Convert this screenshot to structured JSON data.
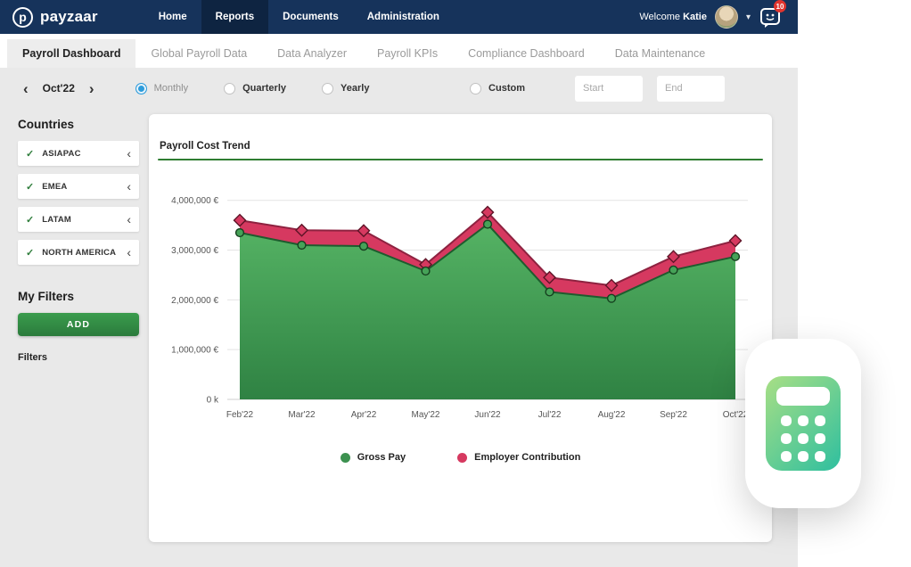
{
  "navbar": {
    "brand": "payzaar",
    "brand_icon_letter": "p",
    "items": [
      {
        "label": "Home",
        "active": false
      },
      {
        "label": "Reports",
        "active": true
      },
      {
        "label": "Documents",
        "active": false
      },
      {
        "label": "Administration",
        "active": false
      }
    ],
    "welcome": "Welcome",
    "user_name": "Katie",
    "notification_count": "10"
  },
  "tabs": [
    {
      "label": "Payroll Dashboard",
      "active": true
    },
    {
      "label": "Global Payroll Data",
      "active": false
    },
    {
      "label": "Data Analyzer",
      "active": false
    },
    {
      "label": "Payroll KPIs",
      "active": false
    },
    {
      "label": "Compliance Dashboard",
      "active": false
    },
    {
      "label": "Data Maintenance",
      "active": false
    }
  ],
  "period_bar": {
    "period": "Oct'22",
    "frequency_options": [
      {
        "label": "Monthly",
        "selected": true
      },
      {
        "label": "Quarterly",
        "selected": false
      },
      {
        "label": "Yearly",
        "selected": false
      }
    ],
    "custom_label": "Custom",
    "start_placeholder": "Start",
    "end_placeholder": "End"
  },
  "sidebar": {
    "countries_title": "Countries",
    "countries": [
      {
        "label": "ASIAPAC"
      },
      {
        "label": "EMEA"
      },
      {
        "label": "LATAM"
      },
      {
        "label": "NORTH AMERICA"
      }
    ],
    "my_filters_title": "My Filters",
    "add_button": "ADD",
    "filters_label": "Filters"
  },
  "chart_data": {
    "type": "area",
    "title": "Payroll Cost Trend",
    "x": [
      "Feb'22",
      "Mar'22",
      "Apr'22",
      "May'22",
      "Jun'22",
      "Jul'22",
      "Aug'22",
      "Sep'22",
      "Oct'22"
    ],
    "series": [
      {
        "name": "Gross Pay",
        "color": "#3d9150",
        "line_color": "#1e5c2e",
        "marker": "circle",
        "values": [
          3350000,
          3100000,
          3080000,
          2580000,
          3520000,
          2160000,
          2030000,
          2600000,
          2870000
        ]
      },
      {
        "name": "Employer Contribution",
        "color": "#d63960",
        "line_color": "#8e2240",
        "marker": "diamond",
        "values": [
          3600000,
          3400000,
          3390000,
          2710000,
          3760000,
          2450000,
          2290000,
          2870000,
          3190000
        ]
      }
    ],
    "y_ticks": [
      {
        "value": 4000000,
        "label": "4,000,000 €"
      },
      {
        "value": 3000000,
        "label": "3,000,000 €"
      },
      {
        "value": 2000000,
        "label": "2,000,000 €"
      },
      {
        "value": 1000000,
        "label": "1,000,000 €"
      },
      {
        "value": 0,
        "label": "0 k"
      }
    ],
    "ylim": [
      0,
      4300000
    ],
    "xlabel": "",
    "ylabel": "",
    "grid": true,
    "legend_position": "bottom"
  },
  "colors": {
    "navbar_bg": "#16335b",
    "accent_green": "#2e7d32",
    "accent_red": "#d63960",
    "radio_blue": "#2d9cdb",
    "page_bg": "#e9e9e9",
    "area_gradient_top": "#55b364",
    "area_gradient_bottom": "#2f8243"
  }
}
